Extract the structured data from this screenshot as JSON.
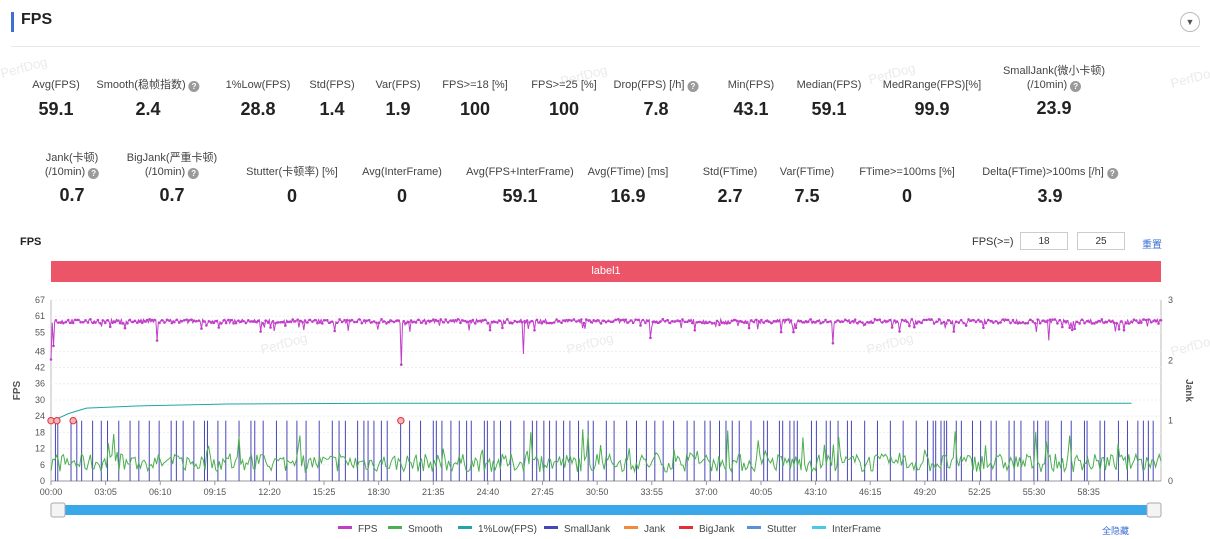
{
  "section_title": "FPS",
  "collapse_icon": "▼",
  "stats_row1": [
    {
      "label": "Avg(FPS)",
      "value": "59.1",
      "help": false
    },
    {
      "label": "Smooth(稳帧指数)",
      "value": "2.4",
      "help": true
    },
    {
      "label": "1%Low(FPS)",
      "value": "28.8",
      "help": false
    },
    {
      "label": "Std(FPS)",
      "value": "1.4",
      "help": false
    },
    {
      "label": "Var(FPS)",
      "value": "1.9",
      "help": false
    },
    {
      "label": "FPS>=18 [%]",
      "value": "100",
      "help": false
    },
    {
      "label": "FPS>=25 [%]",
      "value": "100",
      "help": false
    },
    {
      "label": "Drop(FPS) [/h]",
      "value": "7.8",
      "help": true
    },
    {
      "label": "Min(FPS)",
      "value": "43.1",
      "help": false
    },
    {
      "label": "Median(FPS)",
      "value": "59.1",
      "help": false
    },
    {
      "label": "MedRange(FPS)[%]",
      "value": "99.9",
      "help": false
    },
    {
      "label": "SmallJank(微小卡顿)",
      "label2": "(/10min)",
      "value": "23.9",
      "help": true
    }
  ],
  "stats_row2": [
    {
      "label": "Jank(卡顿)",
      "label2": "(/10min)",
      "value": "0.7",
      "help": true
    },
    {
      "label": "BigJank(严重卡顿)",
      "label2": "(/10min)",
      "value": "0.7",
      "help": true
    },
    {
      "label": "Stutter(卡顿率) [%]",
      "value": "0",
      "help": false
    },
    {
      "label": "Avg(InterFrame)",
      "value": "0",
      "help": false
    },
    {
      "label": "Avg(FPS+InterFrame)",
      "value": "59.1",
      "help": false
    },
    {
      "label": "Avg(FTime) [ms]",
      "value": "16.9",
      "help": false
    },
    {
      "label": "Std(FTime)",
      "value": "2.7",
      "help": false
    },
    {
      "label": "Var(FTime)",
      "value": "7.5",
      "help": false
    },
    {
      "label": "FTime>=100ms [%]",
      "value": "0",
      "help": false
    },
    {
      "label": "Delta(FTime)>100ms [/h]",
      "value": "3.9",
      "help": true
    }
  ],
  "chart_header": {
    "title": "FPS",
    "threshold_label": "FPS(>=)",
    "threshold_1": "18",
    "threshold_2": "25",
    "reset_label": "重置"
  },
  "label_bar": "label1",
  "hide_all_label": "全隐藏",
  "watermark": "PerfDog",
  "chart_data": {
    "type": "line",
    "ylabel": "FPS",
    "ylabel_right": "Jank",
    "ylim": [
      0,
      67
    ],
    "ylim_right": [
      0,
      3
    ],
    "yticks": [
      "0",
      "6",
      "12",
      "18",
      "24",
      "30",
      "36",
      "42",
      "48",
      "55",
      "61",
      "67"
    ],
    "yticks_right": [
      "0",
      "1",
      "2",
      "3"
    ],
    "x_start_seconds": 0,
    "x_end_seconds": 3760,
    "xticks": [
      "00:00",
      "03:05",
      "06:10",
      "09:15",
      "12:20",
      "15:25",
      "18:30",
      "21:35",
      "24:40",
      "27:45",
      "30:50",
      "33:55",
      "37:00",
      "40:05",
      "43:10",
      "46:15",
      "49:20",
      "52:25",
      "55:30",
      "58:35"
    ],
    "fps_typical": 59.1,
    "fps_min": 43.1,
    "fps_dips": [
      {
        "time": "00:00",
        "fps": 45
      },
      {
        "time": "19:45",
        "fps": 43.1
      },
      {
        "time": "26:40",
        "fps": 47
      },
      {
        "time": "00:10",
        "fps": 50
      },
      {
        "time": "06:00",
        "fps": 52
      },
      {
        "time": "33:50",
        "fps": 53
      },
      {
        "time": "44:10",
        "fps": 51
      },
      {
        "time": "56:20",
        "fps": 52
      }
    ],
    "one_percent_low": [
      {
        "time": "00:00",
        "fps": 22
      },
      {
        "time": "01:00",
        "fps": 25
      },
      {
        "time": "02:00",
        "fps": 27
      },
      {
        "time": "05:00",
        "fps": 27.8
      },
      {
        "time": "10:00",
        "fps": 28.5
      },
      {
        "time": "20:00",
        "fps": 28.8
      },
      {
        "time": "61:00",
        "fps": 28.8
      }
    ],
    "big_jank_times": [
      "00:00",
      "00:20",
      "01:15",
      "19:45"
    ],
    "series": [
      {
        "name": "FPS",
        "color": "#c13ec9"
      },
      {
        "name": "Smooth",
        "color": "#4caf50"
      },
      {
        "name": "1%Low(FPS)",
        "color": "#1fa6a6"
      },
      {
        "name": "SmallJank",
        "color": "#4646b8"
      },
      {
        "name": "Jank",
        "color": "#f5893a"
      },
      {
        "name": "BigJank",
        "color": "#e0303a"
      },
      {
        "name": "Stutter",
        "color": "#5b8fd8"
      },
      {
        "name": "InterFrame",
        "color": "#49c9e6"
      }
    ]
  }
}
